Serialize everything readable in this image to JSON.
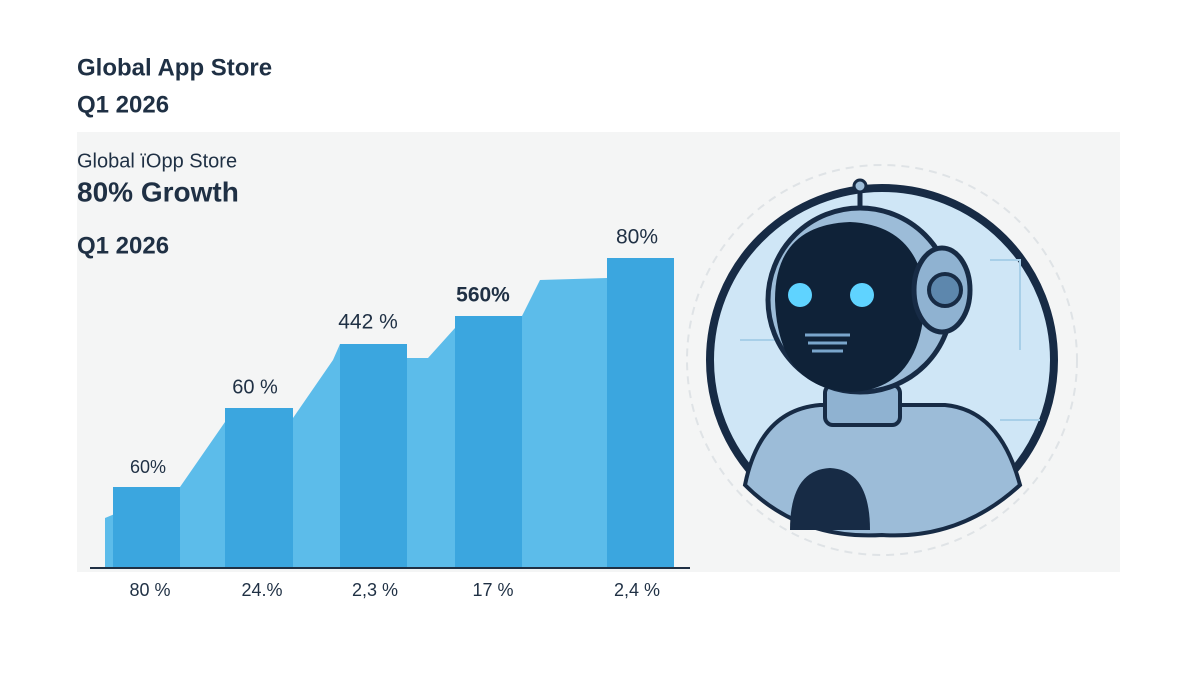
{
  "header": {
    "title": "Global App Store",
    "subtitle": "Q1 2026"
  },
  "panel": {
    "name": "Global ïOpp Store",
    "headline": "80%  Growth",
    "period": "Q1 2026",
    "bar_labels": [
      "60%",
      "60 %",
      "442 %",
      "560%",
      "80%"
    ],
    "axis_labels": [
      "80 %",
      "24.%",
      "2,3 %",
      "17 %",
      "2,4 %"
    ]
  }
}
